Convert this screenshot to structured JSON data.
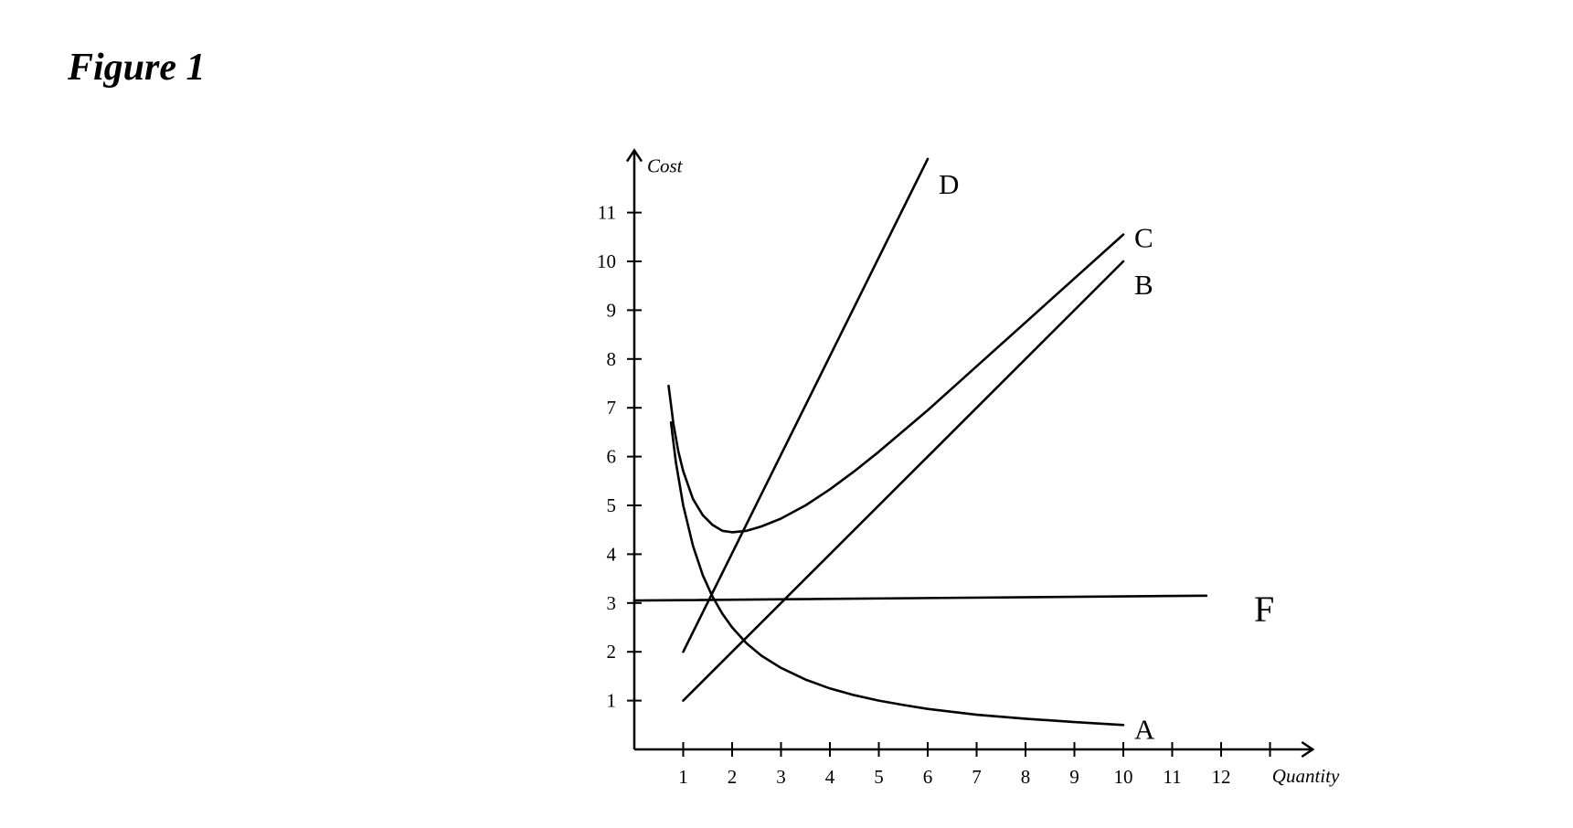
{
  "figure_title": "Figure 1",
  "chart_data": {
    "type": "line",
    "xlabel": "Quantity",
    "ylabel": "Cost",
    "x_ticks": [
      "1",
      "2",
      "3",
      "4",
      "5",
      "6",
      "7",
      "8",
      "9",
      "10",
      "11",
      "12"
    ],
    "y_ticks": [
      "1",
      "2",
      "3",
      "4",
      "5",
      "6",
      "7",
      "8",
      "9",
      "10",
      "11"
    ],
    "xlim": [
      0,
      13.5
    ],
    "ylim": [
      0,
      12.2
    ],
    "grid": false,
    "series": [
      {
        "name": "A",
        "points": [
          [
            0.75,
            6.7
          ],
          [
            0.85,
            5.88
          ],
          [
            1.0,
            5.0
          ],
          [
            1.2,
            4.17
          ],
          [
            1.4,
            3.57
          ],
          [
            1.6,
            3.13
          ],
          [
            1.8,
            2.78
          ],
          [
            2.0,
            2.5
          ],
          [
            2.3,
            2.17
          ],
          [
            2.6,
            1.92
          ],
          [
            3.0,
            1.67
          ],
          [
            3.5,
            1.43
          ],
          [
            4.0,
            1.25
          ],
          [
            4.5,
            1.11
          ],
          [
            5.0,
            1.0
          ],
          [
            5.5,
            0.91
          ],
          [
            6.0,
            0.83
          ],
          [
            7.0,
            0.71
          ],
          [
            8.0,
            0.63
          ],
          [
            9.0,
            0.56
          ],
          [
            10.0,
            0.5
          ]
        ]
      },
      {
        "name": "B",
        "points": [
          [
            1,
            1
          ],
          [
            10,
            10
          ]
        ]
      },
      {
        "name": "C",
        "points": [
          [
            0.7,
            7.45
          ],
          [
            0.8,
            6.67
          ],
          [
            0.9,
            6.11
          ],
          [
            1.0,
            5.7
          ],
          [
            1.2,
            5.13
          ],
          [
            1.4,
            4.8
          ],
          [
            1.6,
            4.6
          ],
          [
            1.8,
            4.48
          ],
          [
            2.0,
            4.45
          ],
          [
            2.3,
            4.48
          ],
          [
            2.6,
            4.57
          ],
          [
            3.0,
            4.73
          ],
          [
            3.5,
            5.0
          ],
          [
            4.0,
            5.33
          ],
          [
            4.5,
            5.7
          ],
          [
            5.0,
            6.1
          ],
          [
            6.0,
            6.95
          ],
          [
            7.0,
            7.85
          ],
          [
            8.0,
            8.75
          ],
          [
            9.0,
            9.65
          ],
          [
            10.0,
            10.55
          ]
        ]
      },
      {
        "name": "D",
        "points": [
          [
            1,
            2
          ],
          [
            6,
            12.1
          ]
        ]
      },
      {
        "name": "F",
        "points": [
          [
            0,
            3.05
          ],
          [
            11.7,
            3.15
          ]
        ]
      }
    ]
  }
}
